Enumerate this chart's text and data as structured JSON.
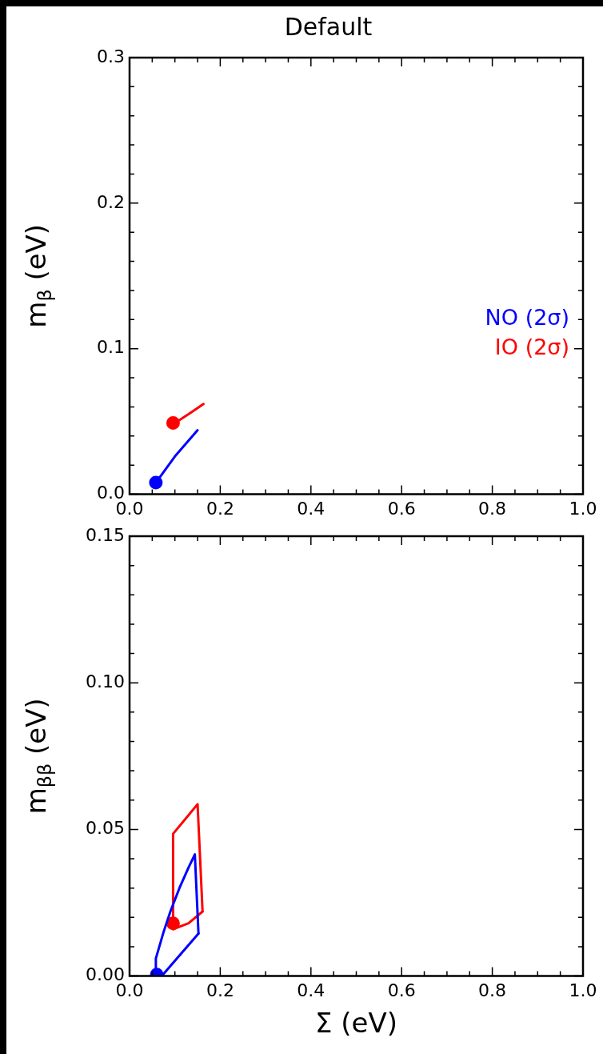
{
  "chart_data": [
    {
      "type": "line",
      "title": "Default",
      "ylabel": "m$_{β}$ (eV)",
      "legend": "right",
      "marker": "none",
      "line_style": "solid",
      "xlim": [
        0,
        1
      ],
      "ylim": [
        0,
        0.3
      ],
      "xticks": [
        {
          "value": 0,
          "label": "0.0"
        },
        {
          "value": 0.05,
          "label": null
        },
        {
          "value": 0.1,
          "label": null
        },
        {
          "value": 0.15,
          "label": null
        },
        {
          "value": 0.2,
          "label": "0.2"
        },
        {
          "value": 0.25,
          "label": null
        },
        {
          "value": 0.3,
          "label": null
        },
        {
          "value": 0.35,
          "label": null
        },
        {
          "value": 0.4,
          "label": "0.4"
        },
        {
          "value": 0.45,
          "label": null
        },
        {
          "value": 0.5,
          "label": null
        },
        {
          "value": 0.55,
          "label": null
        },
        {
          "value": 0.6,
          "label": "0.6"
        },
        {
          "value": 0.65,
          "label": null
        },
        {
          "value": 0.7,
          "label": null
        },
        {
          "value": 0.75,
          "label": null
        },
        {
          "value": 0.8,
          "label": "0.8"
        },
        {
          "value": 0.85,
          "label": null
        },
        {
          "value": 0.9,
          "label": null
        },
        {
          "value": 0.95,
          "label": null
        },
        {
          "value": 1,
          "label": "1.0"
        }
      ],
      "yticks": [
        {
          "value": 0,
          "label": "0.0"
        },
        {
          "value": 0.02,
          "label": null
        },
        {
          "value": 0.04,
          "label": null
        },
        {
          "value": 0.06,
          "label": null
        },
        {
          "value": 0.08,
          "label": null
        },
        {
          "value": 0.1,
          "label": "0.1"
        },
        {
          "value": 0.12,
          "label": null
        },
        {
          "value": 0.14,
          "label": null
        },
        {
          "value": 0.16,
          "label": null
        },
        {
          "value": 0.18,
          "label": null
        },
        {
          "value": 0.2,
          "label": "0.2"
        },
        {
          "value": 0.22,
          "label": null
        },
        {
          "value": 0.24,
          "label": null
        },
        {
          "value": 0.26,
          "label": null
        },
        {
          "value": 0.28,
          "label": null
        },
        {
          "value": 0.3,
          "label": "0.3"
        }
      ],
      "series": [
        {
          "name": "NO (2σ)",
          "color": "#0000ff",
          "x": [
            0.058,
            0.1,
            0.15
          ],
          "values": [
            0.008,
            0.026,
            0.044
          ]
        },
        {
          "name": "IO (2σ)",
          "color": "#ff0000",
          "x": [
            0.096,
            0.105,
            0.13,
            0.163
          ],
          "values": [
            0.049,
            0.05,
            0.055,
            0.062
          ]
        },
        {
          "type": "scatter",
          "marker": "circle",
          "color": "#0000ff",
          "x": [
            0.058
          ],
          "values": [
            0.008
          ]
        },
        {
          "type": "scatter",
          "marker": "circle",
          "color": "#ff0000",
          "x": [
            0.096
          ],
          "values": [
            0.049
          ]
        }
      ]
    },
    {
      "type": "line",
      "xlabel": "Σ (eV)",
      "ylabel": "m$_{ββ}$ (eV)",
      "marker": "none",
      "line_style": "solid",
      "xlim": [
        0,
        1
      ],
      "ylim": [
        0,
        0.15
      ],
      "xticks": [
        {
          "value": 0,
          "label": "0.0"
        },
        {
          "value": 0.05,
          "label": null
        },
        {
          "value": 0.1,
          "label": null
        },
        {
          "value": 0.15,
          "label": null
        },
        {
          "value": 0.2,
          "label": "0.2"
        },
        {
          "value": 0.25,
          "label": null
        },
        {
          "value": 0.3,
          "label": null
        },
        {
          "value": 0.35,
          "label": null
        },
        {
          "value": 0.4,
          "label": "0.4"
        },
        {
          "value": 0.45,
          "label": null
        },
        {
          "value": 0.5,
          "label": null
        },
        {
          "value": 0.55,
          "label": null
        },
        {
          "value": 0.6,
          "label": "0.6"
        },
        {
          "value": 0.65,
          "label": null
        },
        {
          "value": 0.7,
          "label": null
        },
        {
          "value": 0.75,
          "label": null
        },
        {
          "value": 0.8,
          "label": "0.8"
        },
        {
          "value": 0.85,
          "label": null
        },
        {
          "value": 0.9,
          "label": null
        },
        {
          "value": 0.95,
          "label": null
        },
        {
          "value": 1,
          "label": "1.0"
        }
      ],
      "yticks": [
        {
          "value": 0,
          "label": "0.00"
        },
        {
          "value": 0.01,
          "label": null
        },
        {
          "value": 0.02,
          "label": null
        },
        {
          "value": 0.03,
          "label": null
        },
        {
          "value": 0.04,
          "label": null
        },
        {
          "value": 0.05,
          "label": "0.05"
        },
        {
          "value": 0.06,
          "label": null
        },
        {
          "value": 0.07,
          "label": null
        },
        {
          "value": 0.08,
          "label": null
        },
        {
          "value": 0.09,
          "label": null
        },
        {
          "value": 0.1,
          "label": "0.10"
        },
        {
          "value": 0.11,
          "label": null
        },
        {
          "value": 0.12,
          "label": null
        },
        {
          "value": 0.13,
          "label": null
        },
        {
          "value": 0.14,
          "label": null
        },
        {
          "value": 0.15,
          "label": "0.15"
        }
      ],
      "series": [
        {
          "color": "#0000ff",
          "x": [
            0.058,
            0.058,
            0.075,
            0.09,
            0.11,
            0.13,
            0.144,
            0.152
          ],
          "values": [
            0,
            0.006,
            0.015,
            0.022,
            0.03,
            0.037,
            0.0415,
            0.0145
          ]
        },
        {
          "color": "#0000ff",
          "x": [
            0.058,
            0.071,
            0.152
          ],
          "values": [
            0,
            0,
            0.0145
          ]
        },
        {
          "color": "#ff0000",
          "x": [
            0.097,
            0.096,
            0.15,
            0.161
          ],
          "values": [
            0.016,
            0.0485,
            0.0586,
            0.022
          ]
        },
        {
          "color": "#ff0000",
          "x": [
            0.097,
            0.13,
            0.161
          ],
          "values": [
            0.016,
            0.018,
            0.022
          ]
        },
        {
          "type": "scatter",
          "marker": "circle",
          "color": "#0000ff",
          "x": [
            0.06
          ],
          "values": [
            0.0005
          ]
        },
        {
          "type": "scatter",
          "marker": "circle",
          "color": "#ff0000",
          "x": [
            0.096
          ],
          "values": [
            0.018
          ]
        }
      ]
    }
  ]
}
